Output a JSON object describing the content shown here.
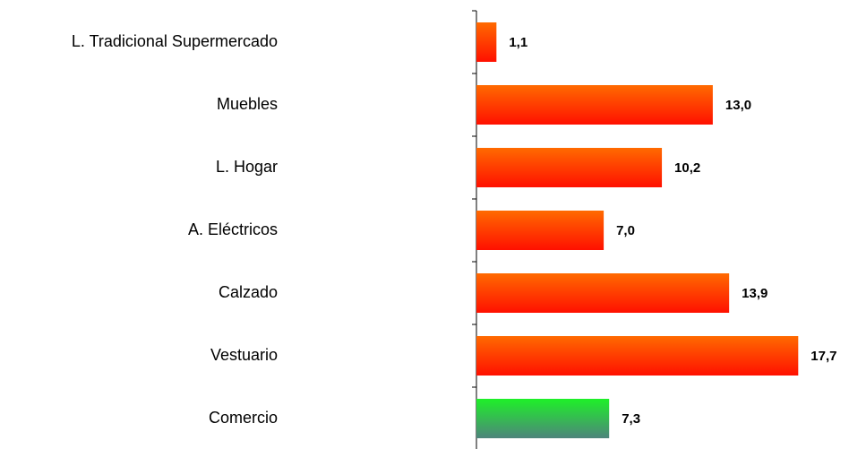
{
  "chart_data": {
    "type": "hbar",
    "categories": [
      "L. Tradicional Supermercado",
      "Muebles",
      "L. Hogar",
      "A. Eléctricos",
      "Calzado",
      "Vestuario",
      "Comercio"
    ],
    "values": [
      1.1,
      13.0,
      10.2,
      7.0,
      13.9,
      17.7,
      7.3
    ],
    "value_labels": [
      "1,1",
      "13,0",
      "10,2",
      "7,0",
      "13,9",
      "17,7",
      "7,3"
    ],
    "colors": [
      "#ff6a00",
      "#ff6a00",
      "#ff6a00",
      "#ff6a00",
      "#ff6a00",
      "#ff6a00",
      "#1ef028"
    ],
    "xlim": [
      0,
      20
    ]
  }
}
